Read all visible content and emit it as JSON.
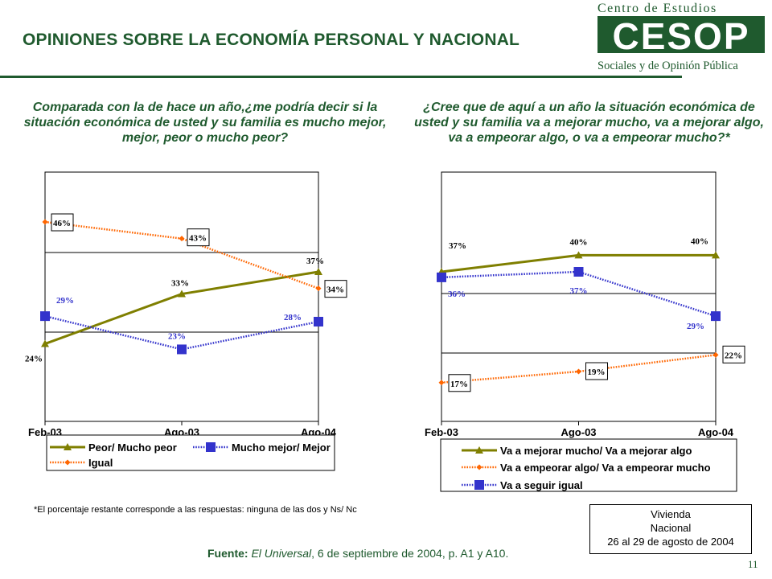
{
  "header": {
    "title": "OPINIONES SOBRE LA ECONOMÍA PERSONAL Y NACIONAL",
    "logo_line1": "Centro de Estudios",
    "logo_mark": "CESOP",
    "logo_line2": "Sociales y de Opinión Pública"
  },
  "colors": {
    "brand_green": "#1f5a2e",
    "olive": "#7f7f00",
    "blue": "#3333cc",
    "orange": "#ff6600"
  },
  "chart_data": [
    {
      "type": "line",
      "title": "Comparada con la de hace un año,¿me podría decir si la situación económica de usted y su familia es mucho mejor, mejor, peor o mucho peor?",
      "categories": [
        "Feb-03",
        "Ago-03",
        "Ago-04"
      ],
      "ylim": [
        10,
        55
      ],
      "grid": true,
      "legend_position": "bottom",
      "series": [
        {
          "name": "Peor/ Mucho peor",
          "values": [
            24,
            33,
            37
          ],
          "labels": [
            "24%",
            "33%",
            "37%"
          ],
          "color": "#7f7f00",
          "marker": "triangle"
        },
        {
          "name": "Mucho mejor/ Mejor",
          "values": [
            29,
            23,
            28
          ],
          "labels": [
            "29%",
            "23%",
            "28%"
          ],
          "color": "#3333cc",
          "marker": "square"
        },
        {
          "name": "Igual",
          "values": [
            46,
            43,
            34
          ],
          "labels": [
            "46%",
            "43%",
            "34%"
          ],
          "color": "#ff6600",
          "marker": "diamond"
        }
      ]
    },
    {
      "type": "line",
      "title": "¿Cree que de aquí a un año la situación económica de usted y su familia va a mejorar mucho, va a mejorar algo, va a empeorar algo, o va a empeorar mucho?*",
      "categories": [
        "Feb-03",
        "Ago-03",
        "Ago-04"
      ],
      "ylim": [
        10,
        55
      ],
      "grid": true,
      "legend_position": "bottom",
      "series": [
        {
          "name": "Va a mejorar mucho/ Va a mejorar algo",
          "values": [
            37,
            40,
            40
          ],
          "labels": [
            "37%",
            "40%",
            "40%"
          ],
          "color": "#7f7f00",
          "marker": "triangle"
        },
        {
          "name": "Va a empeorar algo/ Va a empeorar mucho",
          "values": [
            17,
            19,
            22
          ],
          "labels": [
            "17%",
            "19%",
            "22%"
          ],
          "color": "#ff6600",
          "marker": "diamond"
        },
        {
          "name": "Va a seguir igual",
          "values": [
            36,
            37,
            29
          ],
          "labels": [
            "36%",
            "37%",
            "29%"
          ],
          "color": "#3333cc",
          "marker": "square"
        }
      ]
    }
  ],
  "note": "*El porcentaje restante corresponde a las respuestas: ninguna de las dos y Ns/ Nc",
  "source": {
    "label": "Fuente:",
    "publication": "El Universal",
    "rest": ", 6 de septiembre de 2004, p. A1 y A10."
  },
  "survey_box": [
    "Vivienda",
    "Nacional",
    "26 al 29 de agosto de 2004"
  ],
  "page_number": "11"
}
